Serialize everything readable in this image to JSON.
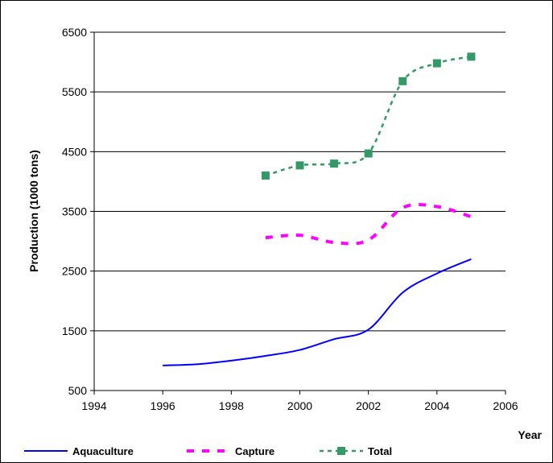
{
  "chart_data": {
    "type": "line",
    "title": "",
    "xlabel": "Year",
    "ylabel": "Production (1000 tons)",
    "xlim": [
      1994,
      2006
    ],
    "ylim": [
      500,
      6500
    ],
    "xticks": [
      1994,
      1996,
      1998,
      2000,
      2002,
      2004,
      2006
    ],
    "yticks": [
      500,
      1500,
      2500,
      3500,
      4500,
      5500,
      6500
    ],
    "grid": "horizontal",
    "legend_position": "bottom",
    "series": [
      {
        "name": "Aquaculture",
        "color": "#0000FF",
        "style": "solid",
        "marker": "none",
        "x": [
          1996,
          1997,
          1998,
          1999,
          2000,
          2001,
          2002,
          2003,
          2004,
          2005
        ],
        "y": [
          920,
          940,
          1000,
          1080,
          1180,
          1360,
          1520,
          2140,
          2460,
          2700
        ]
      },
      {
        "name": "Capture",
        "color": "#FF00FF",
        "style": "dashed",
        "marker": "none",
        "x": [
          1999,
          2000,
          2001,
          2002,
          2003,
          2004,
          2005
        ],
        "y": [
          3060,
          3100,
          2980,
          3020,
          3560,
          3580,
          3410
        ]
      },
      {
        "name": "Total",
        "color": "#339966",
        "style": "dotted",
        "marker": "square",
        "x": [
          1999,
          2000,
          2001,
          2002,
          2003,
          2004,
          2005
        ],
        "y": [
          4100,
          4270,
          4300,
          4470,
          5680,
          5980,
          6090
        ]
      }
    ]
  }
}
